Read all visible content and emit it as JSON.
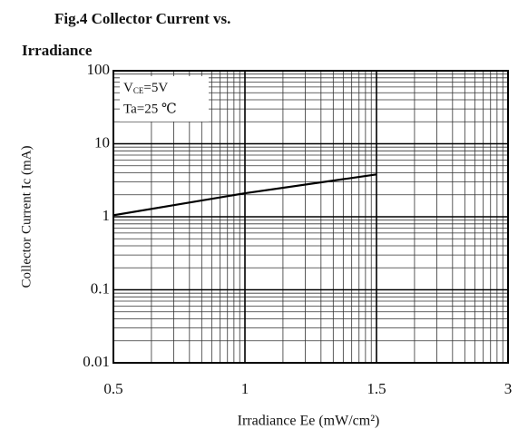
{
  "chart_data": {
    "type": "line",
    "title": [
      "Fig.4 Collector Current vs.",
      "Irradiance"
    ],
    "annotation_vce": {
      "symbol": "V",
      "subscript": "CE",
      "rest": "=5V"
    },
    "annotation_ta": "Ta=25 ℃",
    "xlabel": "Irradiance Ee (mW/cm²)",
    "ylabel": "Collector Current Ic (mA)",
    "x": [
      0.5,
      1,
      1.5
    ],
    "series": [
      {
        "name": "Ic",
        "color": "#000000",
        "values": [
          1.05,
          2.1,
          3.8
        ]
      }
    ],
    "xlim": [
      0.5,
      3
    ],
    "xticks": [
      0.5,
      1,
      1.5,
      3
    ],
    "ylim": [
      0.01,
      100
    ],
    "yticks": [
      0.01,
      0.1,
      1,
      10,
      100
    ],
    "yscale": "log",
    "grid": true
  }
}
